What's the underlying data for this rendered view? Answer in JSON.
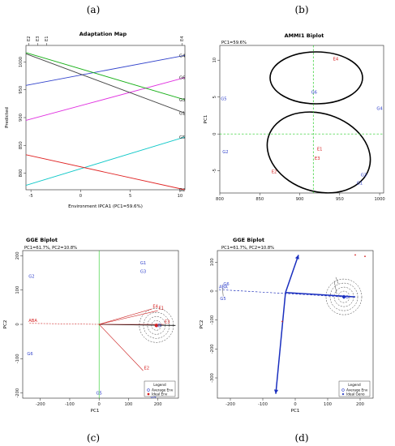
{
  "panel_labels": {
    "a": "(a)",
    "b": "(b)",
    "c": "(c)",
    "d": "(d)"
  },
  "chart_data": [
    {
      "id": "a",
      "type": "line",
      "title": "Adaptation Map",
      "xlabel": "Environment IPCA1 (PC1=59.6%)",
      "ylabel": "Predicted",
      "xlim": [
        -5.5,
        10.5
      ],
      "ylim": [
        770,
        1030
      ],
      "xticks": [
        -5,
        0,
        5,
        10
      ],
      "yticks": [
        800,
        850,
        900,
        950,
        1000
      ],
      "top_axis_labels": [
        {
          "label": "E2",
          "x": -5.2
        },
        {
          "label": "E3",
          "x": -4.3
        },
        {
          "label": "E1",
          "x": -3.4
        },
        {
          "label": "E4",
          "x": 10.2
        }
      ],
      "series": [
        {
          "name": "G4",
          "color": "#3344cc",
          "x": [
            -5.5,
            10.5
          ],
          "values": [
            958,
            1012
          ]
        },
        {
          "name": "G6",
          "color": "#e030e0",
          "x": [
            -5.5,
            10.5
          ],
          "values": [
            895,
            972
          ]
        },
        {
          "name": "G3",
          "color": "#18b018",
          "x": [
            -5.5,
            10.5
          ],
          "values": [
            1017,
            932
          ]
        },
        {
          "name": "G1",
          "color": "#444444",
          "x": [
            -5.5,
            10.5
          ],
          "values": [
            1015,
            908
          ]
        },
        {
          "name": "G5",
          "color": "#10c8c8",
          "x": [
            -5.5,
            10.5
          ],
          "values": [
            778,
            865
          ]
        },
        {
          "name": "G2",
          "color": "#e02424",
          "x": [
            -5.5,
            10.5
          ],
          "values": [
            833,
            770
          ]
        }
      ]
    },
    {
      "id": "b",
      "type": "scatter",
      "title": "AMMI1 Biplot",
      "subtitle": "PC1=59.6%",
      "xlabel": "",
      "ylabel": "PC1",
      "xlim": [
        800,
        1005
      ],
      "ylim": [
        -8,
        12
      ],
      "xticks": [
        800,
        850,
        900,
        950,
        1000
      ],
      "yticks": [
        -5,
        0,
        5,
        10
      ],
      "ref_lines": {
        "x": 917,
        "y": 0
      },
      "genotypes": [
        {
          "label": "G4",
          "x": 1000,
          "y": 3.5
        },
        {
          "label": "G5",
          "x": 805,
          "y": 4.8
        },
        {
          "label": "G6",
          "x": 918,
          "y": 5.7
        },
        {
          "label": "G2",
          "x": 807,
          "y": -2.4
        },
        {
          "label": "G3",
          "x": 980,
          "y": -5.5
        },
        {
          "label": "G1",
          "x": 975,
          "y": -6.6
        }
      ],
      "environments": [
        {
          "label": "E4",
          "x": 945,
          "y": 10.2
        },
        {
          "label": "E1",
          "x": 925,
          "y": -2.0
        },
        {
          "label": "E3",
          "x": 922,
          "y": -3.3
        },
        {
          "label": "E2",
          "x": 868,
          "y": -5.1
        }
      ]
    },
    {
      "id": "c",
      "type": "scatter",
      "title": "GGE Biplot",
      "subtitle": "PC1=61.7%, PC2=10.8%",
      "xlabel": "PC1",
      "ylabel": "PC2",
      "xlim": [
        -260,
        270
      ],
      "ylim": [
        -215,
        215
      ],
      "xticks": [
        -200,
        -100,
        0,
        100,
        200
      ],
      "yticks": [
        -200,
        -100,
        0,
        100,
        200
      ],
      "genotypes": [
        {
          "label": "G1",
          "x": 150,
          "y": 180
        },
        {
          "label": "G3",
          "x": 150,
          "y": 155
        },
        {
          "label": "G2",
          "x": -230,
          "y": 140
        },
        {
          "label": "G6",
          "x": -235,
          "y": -85
        },
        {
          "label": "G5",
          "x": 0,
          "y": -200
        },
        {
          "label": "G4",
          "x": 185,
          "y": -210
        }
      ],
      "environments": [
        {
          "label": "ABA",
          "x": -240,
          "y": 3
        },
        {
          "label": "E4",
          "x": 180,
          "y": 45
        },
        {
          "label": "E1",
          "x": 200,
          "y": 40
        },
        {
          "label": "E3",
          "x": 220,
          "y": 0
        },
        {
          "label": "E2",
          "x": 150,
          "y": -135
        }
      ],
      "legend": {
        "placement": "bottom-right",
        "title": "Legend",
        "entries": [
          "Average Env",
          "Ideal Env"
        ]
      }
    },
    {
      "id": "d",
      "type": "scatter",
      "title": "GGE Biplot",
      "subtitle": "PC1=61.7%, PC2=10.8%",
      "xlabel": "PC1",
      "ylabel": "PC2",
      "xlim": [
        -240,
        240
      ],
      "ylim": [
        -370,
        140
      ],
      "xticks": [
        -200,
        -100,
        0,
        100,
        200
      ],
      "yticks": [
        -300,
        -200,
        -100,
        0,
        100
      ],
      "genotypes": [
        {
          "label": "G6",
          "x": -220,
          "y": 25
        },
        {
          "label": "G5",
          "x": -230,
          "y": -25
        }
      ],
      "environments": [
        {
          "label": "ABA",
          "x": -235,
          "y": 5
        }
      ],
      "legend": {
        "placement": "bottom-right",
        "title": "Legend",
        "entries": [
          "Average Env",
          "Ideal Geno"
        ]
      }
    }
  ]
}
